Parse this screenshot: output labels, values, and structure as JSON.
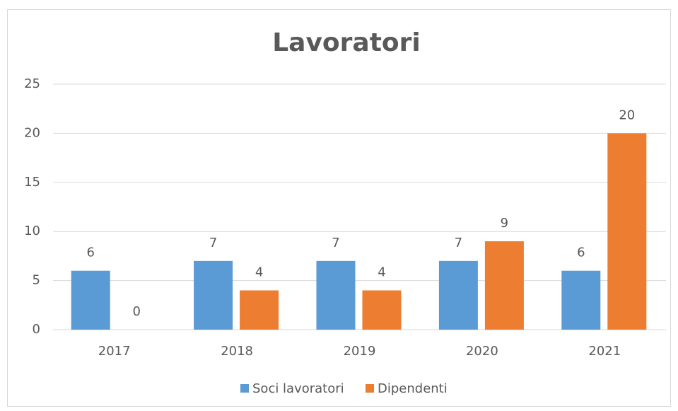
{
  "chart_data": {
    "type": "bar",
    "title": "Lavoratori",
    "categories": [
      "2017",
      "2018",
      "2019",
      "2020",
      "2021"
    ],
    "series": [
      {
        "name": "Soci lavoratori",
        "color": "#5b9bd5",
        "values": [
          6,
          7,
          7,
          7,
          6
        ]
      },
      {
        "name": "Dipendenti",
        "color": "#ed7d31",
        "values": [
          0,
          4,
          4,
          9,
          20
        ]
      }
    ],
    "ylim": [
      0,
      25
    ],
    "yticks": [
      0,
      5,
      10,
      15,
      20,
      25
    ],
    "grid": true,
    "legend": "bottom"
  }
}
